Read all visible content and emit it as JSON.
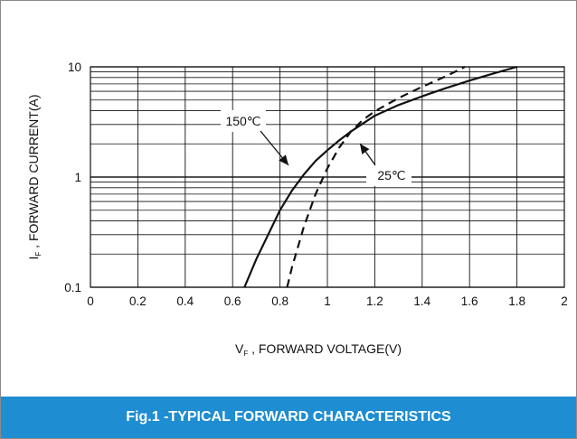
{
  "footer": {
    "caption": "Fig.1 -TYPICAL FORWARD CHARACTERISTICS"
  },
  "chart_data": {
    "type": "line",
    "title": "Fig.1 -TYPICAL FORWARD CHARACTERISTICS",
    "xlabel": {
      "symbol": "V",
      "subscript": "F",
      "text": ", FORWARD VOLTAGE(V)"
    },
    "ylabel": {
      "symbol": "I",
      "subscript": "F",
      "text": ", FORWARD CURRENT(A)"
    },
    "xlim": [
      0,
      2
    ],
    "ylim": [
      0.1,
      10
    ],
    "y_scale": "log",
    "grid": true,
    "x_ticks": [
      "0",
      "0.2",
      "0.4",
      "0.6",
      "0.8",
      "1",
      "1.2",
      "1.4",
      "1.6",
      "1.8",
      "2"
    ],
    "y_ticks": [
      "0.1",
      "1",
      "10"
    ],
    "series": [
      {
        "name": "150℃",
        "style": "solid",
        "color": "#111111",
        "x": [
          0.65,
          0.7,
          0.75,
          0.8,
          0.85,
          0.9,
          0.95,
          1.0,
          1.05,
          1.1,
          1.2,
          1.3,
          1.4,
          1.5,
          1.6,
          1.7,
          1.8
        ],
        "y": [
          0.1,
          0.18,
          0.3,
          0.5,
          0.75,
          1.05,
          1.4,
          1.75,
          2.15,
          2.6,
          3.6,
          4.5,
          5.4,
          6.4,
          7.5,
          8.7,
          10
        ]
      },
      {
        "name": "25℃",
        "style": "dashed",
        "color": "#111111",
        "x": [
          0.83,
          0.85,
          0.88,
          0.9,
          0.95,
          1.0,
          1.05,
          1.1,
          1.15,
          1.2,
          1.3,
          1.4,
          1.5,
          1.58
        ],
        "y": [
          0.1,
          0.15,
          0.25,
          0.35,
          0.7,
          1.2,
          1.85,
          2.6,
          3.3,
          3.95,
          5.2,
          6.6,
          8.2,
          10
        ]
      }
    ],
    "annotations": [
      {
        "text": "150℃",
        "series": "150℃"
      },
      {
        "text": "25℃",
        "series": "25℃"
      }
    ]
  }
}
